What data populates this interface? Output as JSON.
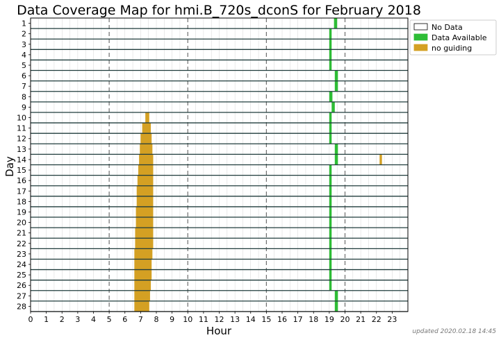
{
  "chart_data": {
    "type": "heatmap",
    "title": "Data Coverage Map for hmi.B_720s_dconS for February 2018",
    "xlabel": "Hour",
    "ylabel": "Day",
    "xlim": [
      0,
      24
    ],
    "x_ticks": [
      "0",
      "1",
      "2",
      "3",
      "4",
      "5",
      "6",
      "7",
      "8",
      "9",
      "10",
      "11",
      "12",
      "13",
      "14",
      "15",
      "16",
      "17",
      "18",
      "19",
      "20",
      "21",
      "22",
      "23"
    ],
    "days": [
      "1",
      "2",
      "3",
      "4",
      "5",
      "6",
      "7",
      "8",
      "9",
      "10",
      "11",
      "12",
      "13",
      "14",
      "15",
      "16",
      "17",
      "18",
      "19",
      "20",
      "21",
      "22",
      "23",
      "24",
      "25",
      "26",
      "27",
      "28"
    ],
    "dashed_hours": [
      5,
      10,
      15,
      20
    ],
    "legend": {
      "placement": "outside-right",
      "entries": [
        {
          "label": "No Data",
          "color": "#ffffff"
        },
        {
          "label": "Data Available",
          "color": "#2ebd36"
        },
        {
          "label": "no guiding",
          "color": "#d4a023"
        }
      ]
    },
    "colors": {
      "no_data": "#ffffff",
      "data_available": "#2ebd36",
      "no_guiding": "#d4a023",
      "day_line": "#1f3b3b"
    },
    "segments": [
      {
        "day": 1,
        "start": 19.3,
        "end": 19.5,
        "status": "data_available"
      },
      {
        "day": 2,
        "start": 19.0,
        "end": 19.15,
        "status": "data_available"
      },
      {
        "day": 3,
        "start": 19.0,
        "end": 19.15,
        "status": "data_available"
      },
      {
        "day": 4,
        "start": 19.0,
        "end": 19.15,
        "status": "data_available"
      },
      {
        "day": 5,
        "start": 19.0,
        "end": 19.15,
        "status": "data_available"
      },
      {
        "day": 6,
        "start": 19.35,
        "end": 19.55,
        "status": "data_available"
      },
      {
        "day": 7,
        "start": 19.35,
        "end": 19.55,
        "status": "data_available"
      },
      {
        "day": 8,
        "start": 19.0,
        "end": 19.2,
        "status": "data_available"
      },
      {
        "day": 9,
        "start": 19.15,
        "end": 19.35,
        "status": "data_available"
      },
      {
        "day": 10,
        "start": 7.3,
        "end": 7.55,
        "status": "no_guiding"
      },
      {
        "day": 10,
        "start": 19.0,
        "end": 19.15,
        "status": "data_available"
      },
      {
        "day": 11,
        "start": 7.1,
        "end": 7.65,
        "status": "no_guiding"
      },
      {
        "day": 11,
        "start": 19.0,
        "end": 19.15,
        "status": "data_available"
      },
      {
        "day": 12,
        "start": 7.0,
        "end": 7.7,
        "status": "no_guiding"
      },
      {
        "day": 12,
        "start": 19.0,
        "end": 19.15,
        "status": "data_available"
      },
      {
        "day": 13,
        "start": 6.95,
        "end": 7.75,
        "status": "no_guiding"
      },
      {
        "day": 13,
        "start": 19.35,
        "end": 19.55,
        "status": "data_available"
      },
      {
        "day": 14,
        "start": 6.9,
        "end": 7.8,
        "status": "no_guiding"
      },
      {
        "day": 14,
        "start": 19.35,
        "end": 19.55,
        "status": "data_available"
      },
      {
        "day": 14,
        "start": 22.2,
        "end": 22.35,
        "status": "no_guiding"
      },
      {
        "day": 15,
        "start": 6.85,
        "end": 7.8,
        "status": "no_guiding"
      },
      {
        "day": 15,
        "start": 19.0,
        "end": 19.15,
        "status": "data_available"
      },
      {
        "day": 16,
        "start": 6.8,
        "end": 7.8,
        "status": "no_guiding"
      },
      {
        "day": 16,
        "start": 19.0,
        "end": 19.15,
        "status": "data_available"
      },
      {
        "day": 17,
        "start": 6.75,
        "end": 7.8,
        "status": "no_guiding"
      },
      {
        "day": 17,
        "start": 19.0,
        "end": 19.15,
        "status": "data_available"
      },
      {
        "day": 18,
        "start": 6.75,
        "end": 7.8,
        "status": "no_guiding"
      },
      {
        "day": 18,
        "start": 19.0,
        "end": 19.15,
        "status": "data_available"
      },
      {
        "day": 19,
        "start": 6.7,
        "end": 7.8,
        "status": "no_guiding"
      },
      {
        "day": 19,
        "start": 19.0,
        "end": 19.15,
        "status": "data_available"
      },
      {
        "day": 20,
        "start": 6.7,
        "end": 7.8,
        "status": "no_guiding"
      },
      {
        "day": 20,
        "start": 19.0,
        "end": 19.15,
        "status": "data_available"
      },
      {
        "day": 21,
        "start": 6.65,
        "end": 7.8,
        "status": "no_guiding"
      },
      {
        "day": 21,
        "start": 19.0,
        "end": 19.15,
        "status": "data_available"
      },
      {
        "day": 22,
        "start": 6.65,
        "end": 7.8,
        "status": "no_guiding"
      },
      {
        "day": 22,
        "start": 19.0,
        "end": 19.15,
        "status": "data_available"
      },
      {
        "day": 23,
        "start": 6.6,
        "end": 7.75,
        "status": "no_guiding"
      },
      {
        "day": 23,
        "start": 19.0,
        "end": 19.15,
        "status": "data_available"
      },
      {
        "day": 24,
        "start": 6.6,
        "end": 7.7,
        "status": "no_guiding"
      },
      {
        "day": 24,
        "start": 19.0,
        "end": 19.15,
        "status": "data_available"
      },
      {
        "day": 25,
        "start": 6.6,
        "end": 7.7,
        "status": "no_guiding"
      },
      {
        "day": 25,
        "start": 19.0,
        "end": 19.15,
        "status": "data_available"
      },
      {
        "day": 26,
        "start": 6.6,
        "end": 7.65,
        "status": "no_guiding"
      },
      {
        "day": 26,
        "start": 19.0,
        "end": 19.15,
        "status": "data_available"
      },
      {
        "day": 27,
        "start": 6.6,
        "end": 7.6,
        "status": "no_guiding"
      },
      {
        "day": 27,
        "start": 19.35,
        "end": 19.55,
        "status": "data_available"
      },
      {
        "day": 28,
        "start": 6.6,
        "end": 7.55,
        "status": "no_guiding"
      },
      {
        "day": 28,
        "start": 19.35,
        "end": 19.55,
        "status": "data_available"
      }
    ]
  },
  "footer": {
    "updated_text": "updated 2020.02.18 14:45"
  }
}
